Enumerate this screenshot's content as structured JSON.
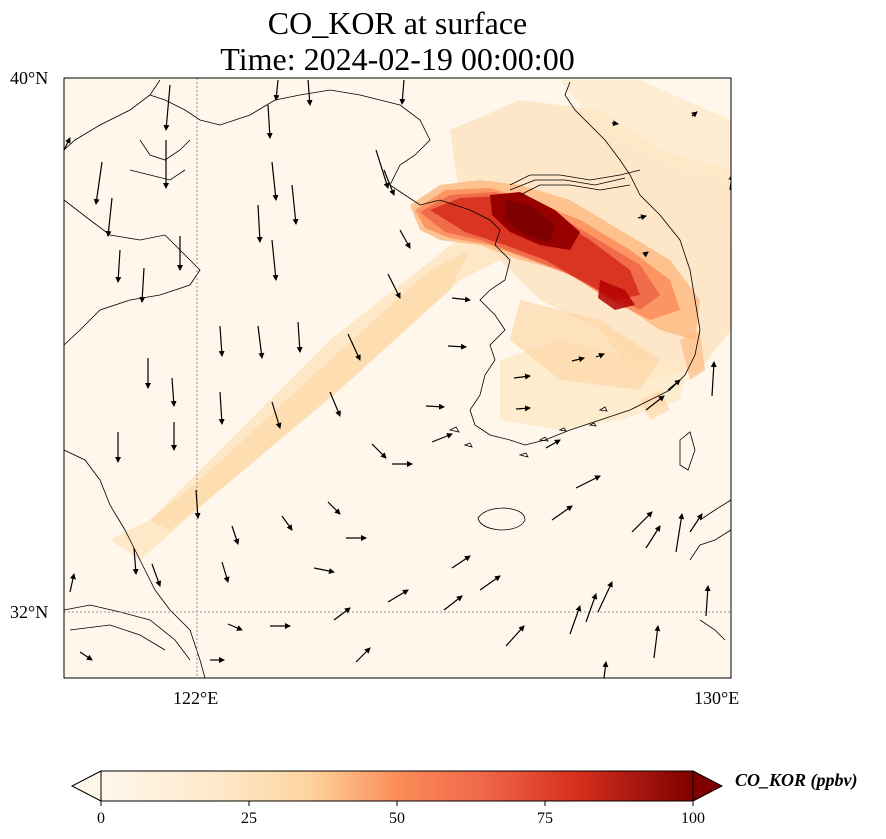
{
  "title_line1": "CO_KOR at surface",
  "title_line2": "Time: 2024-02-19 00:00:00",
  "lat_labels": [
    "40°N",
    "32°N"
  ],
  "lon_labels": [
    "122°E",
    "130°E"
  ],
  "colorbar": {
    "label": "CO_KOR (ppbv)",
    "ticks": [
      "0",
      "25",
      "50",
      "75",
      "100"
    ],
    "colormap": "OrRd",
    "range": [
      0,
      100
    ],
    "extend": "both"
  },
  "colors": {
    "low": "#fff7ec",
    "mid_low": "#fdd49e",
    "mid": "#fc8d59",
    "high": "#d7301f",
    "max": "#7f0000"
  },
  "map_extent": {
    "lon": [
      120,
      130
    ],
    "lat": [
      31,
      40
    ]
  }
}
